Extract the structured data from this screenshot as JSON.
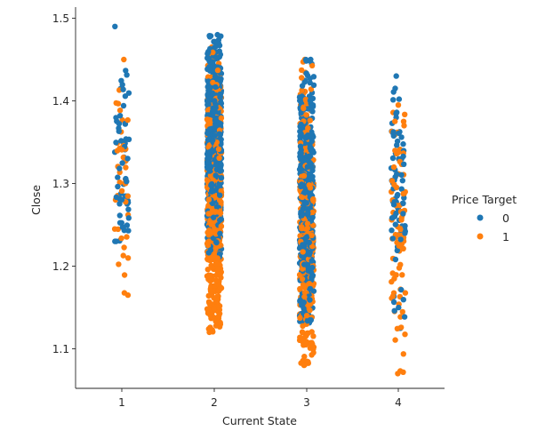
{
  "chart_data": {
    "type": "scatter",
    "kind": "stripplot",
    "xlabel": "Current State",
    "ylabel": "Close",
    "categories": [
      "1",
      "2",
      "3",
      "4"
    ],
    "yticks": [
      "1.1",
      "1.2",
      "1.3",
      "1.4",
      "1.5"
    ],
    "ylim": [
      1.05,
      1.51
    ],
    "legend": {
      "title": "Price Target",
      "entries": [
        "0",
        "1"
      ],
      "placement": "right"
    },
    "colors": {
      "0": "#1f77b4",
      "1": "#ff7f0e"
    },
    "series": [
      {
        "name": "0",
        "groups": [
          {
            "category": "1",
            "count": 60,
            "ymin": 1.23,
            "ymax": 1.49,
            "mean": 1.33
          },
          {
            "category": "2",
            "count": 700,
            "ymin": 1.21,
            "ymax": 1.48,
            "mean": 1.35
          },
          {
            "category": "3",
            "count": 450,
            "ymin": 1.13,
            "ymax": 1.45,
            "mean": 1.28
          },
          {
            "category": "4",
            "count": 80,
            "ymin": 1.125,
            "ymax": 1.43,
            "mean": 1.29
          }
        ]
      },
      {
        "name": "1",
        "groups": [
          {
            "category": "1",
            "count": 45,
            "ymin": 1.165,
            "ymax": 1.45,
            "mean": 1.3
          },
          {
            "category": "2",
            "count": 600,
            "ymin": 1.12,
            "ymax": 1.465,
            "mean": 1.28
          },
          {
            "category": "3",
            "count": 300,
            "ymin": 1.08,
            "ymax": 1.45,
            "mean": 1.24
          },
          {
            "category": "4",
            "count": 80,
            "ymin": 1.07,
            "ymax": 1.395,
            "mean": 1.25
          }
        ]
      }
    ]
  }
}
